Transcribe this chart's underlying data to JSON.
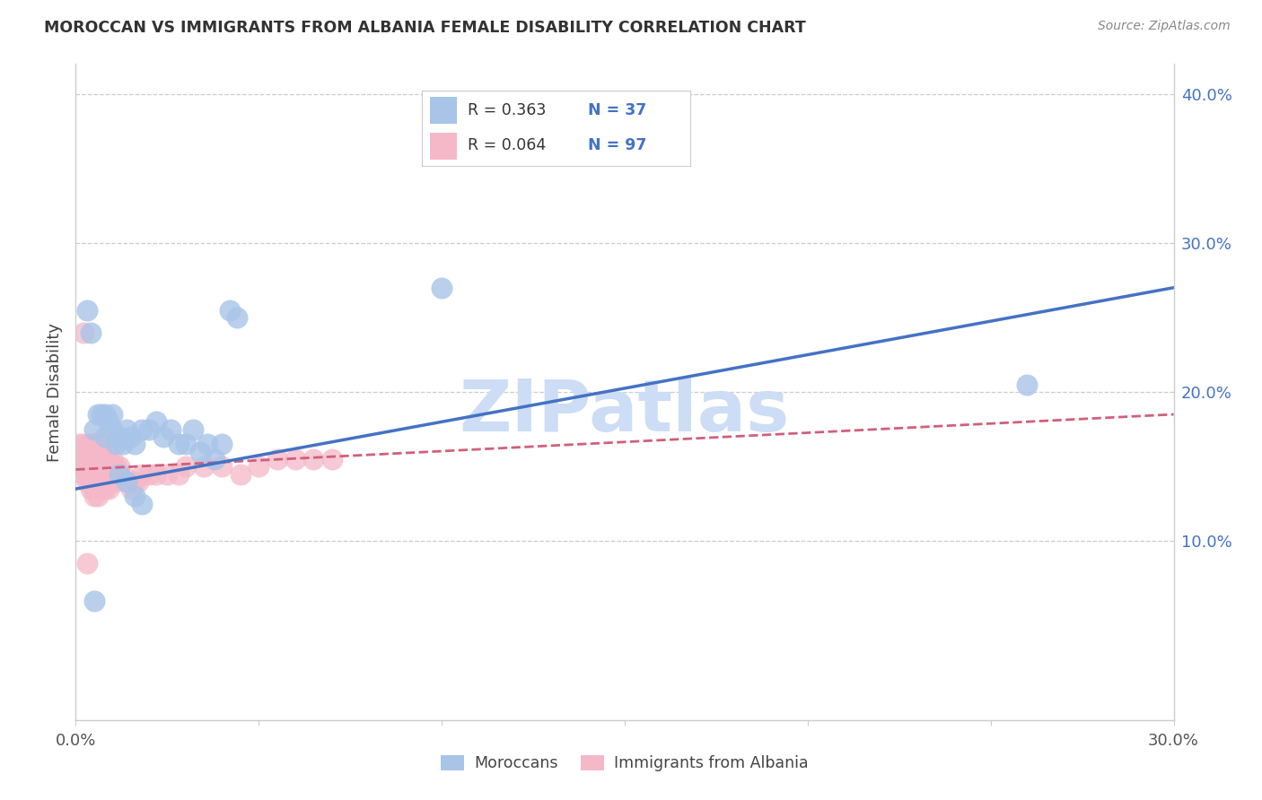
{
  "title": "MOROCCAN VS IMMIGRANTS FROM ALBANIA FEMALE DISABILITY CORRELATION CHART",
  "source": "Source: ZipAtlas.com",
  "ylabel": "Female Disability",
  "xlim": [
    0.0,
    0.3
  ],
  "ylim": [
    -0.02,
    0.42
  ],
  "yticks": [
    0.1,
    0.2,
    0.3,
    0.4
  ],
  "ytick_labels": [
    "10.0%",
    "20.0%",
    "30.0%",
    "40.0%"
  ],
  "xticks": [
    0.0,
    0.05,
    0.1,
    0.15,
    0.2,
    0.25,
    0.3
  ],
  "xtick_labels": [
    "0.0%",
    "",
    "",
    "",
    "",
    "",
    "30.0%"
  ],
  "color_blue": "#a8c4e8",
  "color_pink": "#f5b8c8",
  "color_blue_line": "#4472c4",
  "color_pink_line": "#d0607a",
  "watermark": "ZIPatlas",
  "watermark_color": "#ccddf5",
  "blue_R": "0.363",
  "blue_N": "37",
  "pink_R": "0.064",
  "pink_N": "97",
  "blue_x": [
    0.005,
    0.007,
    0.008,
    0.009,
    0.01,
    0.011,
    0.012,
    0.013,
    0.014,
    0.015,
    0.016,
    0.018,
    0.02,
    0.022,
    0.024,
    0.026,
    0.028,
    0.03,
    0.032,
    0.034,
    0.036,
    0.038,
    0.04,
    0.042,
    0.044,
    0.003,
    0.004,
    0.006,
    0.008,
    0.01,
    0.1,
    0.26,
    0.012,
    0.014,
    0.016,
    0.018,
    0.005
  ],
  "blue_y": [
    0.175,
    0.185,
    0.17,
    0.18,
    0.175,
    0.165,
    0.17,
    0.165,
    0.175,
    0.17,
    0.165,
    0.175,
    0.175,
    0.18,
    0.17,
    0.175,
    0.165,
    0.165,
    0.175,
    0.16,
    0.165,
    0.155,
    0.165,
    0.255,
    0.25,
    0.255,
    0.24,
    0.185,
    0.185,
    0.185,
    0.27,
    0.205,
    0.145,
    0.14,
    0.13,
    0.125,
    0.06
  ],
  "pink_x": [
    0.001,
    0.001,
    0.001,
    0.001,
    0.001,
    0.002,
    0.002,
    0.002,
    0.002,
    0.002,
    0.002,
    0.002,
    0.003,
    0.003,
    0.003,
    0.003,
    0.003,
    0.003,
    0.003,
    0.003,
    0.003,
    0.003,
    0.004,
    0.004,
    0.004,
    0.004,
    0.004,
    0.004,
    0.004,
    0.004,
    0.004,
    0.005,
    0.005,
    0.005,
    0.005,
    0.005,
    0.005,
    0.005,
    0.005,
    0.005,
    0.005,
    0.006,
    0.006,
    0.006,
    0.006,
    0.006,
    0.006,
    0.006,
    0.006,
    0.007,
    0.007,
    0.007,
    0.007,
    0.007,
    0.007,
    0.007,
    0.008,
    0.008,
    0.008,
    0.008,
    0.008,
    0.008,
    0.009,
    0.009,
    0.009,
    0.009,
    0.009,
    0.01,
    0.01,
    0.01,
    0.01,
    0.011,
    0.011,
    0.011,
    0.012,
    0.012,
    0.013,
    0.014,
    0.015,
    0.016,
    0.017,
    0.018,
    0.02,
    0.022,
    0.025,
    0.028,
    0.03,
    0.035,
    0.04,
    0.045,
    0.05,
    0.055,
    0.06,
    0.065,
    0.07,
    0.002,
    0.003
  ],
  "pink_y": [
    0.165,
    0.16,
    0.155,
    0.155,
    0.15,
    0.165,
    0.16,
    0.155,
    0.15,
    0.145,
    0.155,
    0.15,
    0.165,
    0.16,
    0.155,
    0.15,
    0.145,
    0.14,
    0.16,
    0.155,
    0.15,
    0.145,
    0.165,
    0.16,
    0.155,
    0.15,
    0.145,
    0.14,
    0.135,
    0.155,
    0.15,
    0.165,
    0.16,
    0.155,
    0.15,
    0.145,
    0.14,
    0.135,
    0.13,
    0.165,
    0.155,
    0.165,
    0.16,
    0.155,
    0.15,
    0.145,
    0.14,
    0.135,
    0.13,
    0.165,
    0.16,
    0.155,
    0.15,
    0.145,
    0.14,
    0.135,
    0.16,
    0.155,
    0.15,
    0.145,
    0.14,
    0.135,
    0.155,
    0.15,
    0.145,
    0.14,
    0.135,
    0.155,
    0.15,
    0.145,
    0.14,
    0.15,
    0.145,
    0.14,
    0.15,
    0.145,
    0.145,
    0.14,
    0.135,
    0.14,
    0.14,
    0.145,
    0.145,
    0.145,
    0.145,
    0.145,
    0.15,
    0.15,
    0.15,
    0.145,
    0.15,
    0.155,
    0.155,
    0.155,
    0.155,
    0.24,
    0.085
  ],
  "blue_trend_x0": 0.0,
  "blue_trend_y0": 0.135,
  "blue_trend_x1": 0.3,
  "blue_trend_y1": 0.27,
  "pink_trend_x0": 0.0,
  "pink_trend_y0": 0.148,
  "pink_trend_x1": 0.3,
  "pink_trend_y1": 0.185
}
